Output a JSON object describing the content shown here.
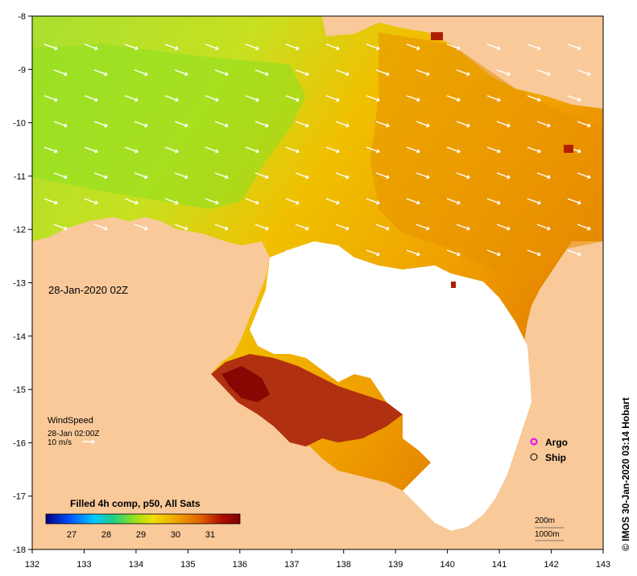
{
  "map": {
    "lon_ticks": [
      "132",
      "133",
      "134",
      "135",
      "136",
      "137",
      "138",
      "139",
      "140",
      "141",
      "142",
      "143"
    ],
    "lat_ticks": [
      "-8",
      "-9",
      "-10",
      "-11",
      "-12",
      "-13",
      "-14",
      "-15",
      "-16",
      "-17",
      "-18"
    ],
    "lon_range": [
      132,
      143
    ],
    "lat_range": [
      -18,
      -8
    ],
    "timestamp": "28-Jan-2020 02Z",
    "credit": "© IMOS 30-Jan-2020 03:14 Hobart",
    "colors": {
      "land": "#f9c99a",
      "cloud_mask": "#ffffff",
      "wind_arrow": "#ffffff"
    }
  },
  "wind": {
    "title": "WindSpeed",
    "time": "28-Jan 02:00Z",
    "scale_label": "10 m/s"
  },
  "legend": {
    "argo": "Argo",
    "ship": "Ship",
    "argo_color": "#ee00ee"
  },
  "colorbar": {
    "title": "Filled 4h comp, p50, All Sats",
    "tick_labels": [
      "27",
      "28",
      "29",
      "30",
      "31"
    ],
    "stops": [
      "#000080",
      "#0050ff",
      "#00c8ff",
      "#20d080",
      "#90e020",
      "#f0e000",
      "#f0a000",
      "#e06000",
      "#b01000",
      "#800000"
    ]
  },
  "scale_bar": {
    "depth": "200m",
    "distance": "1000m"
  }
}
